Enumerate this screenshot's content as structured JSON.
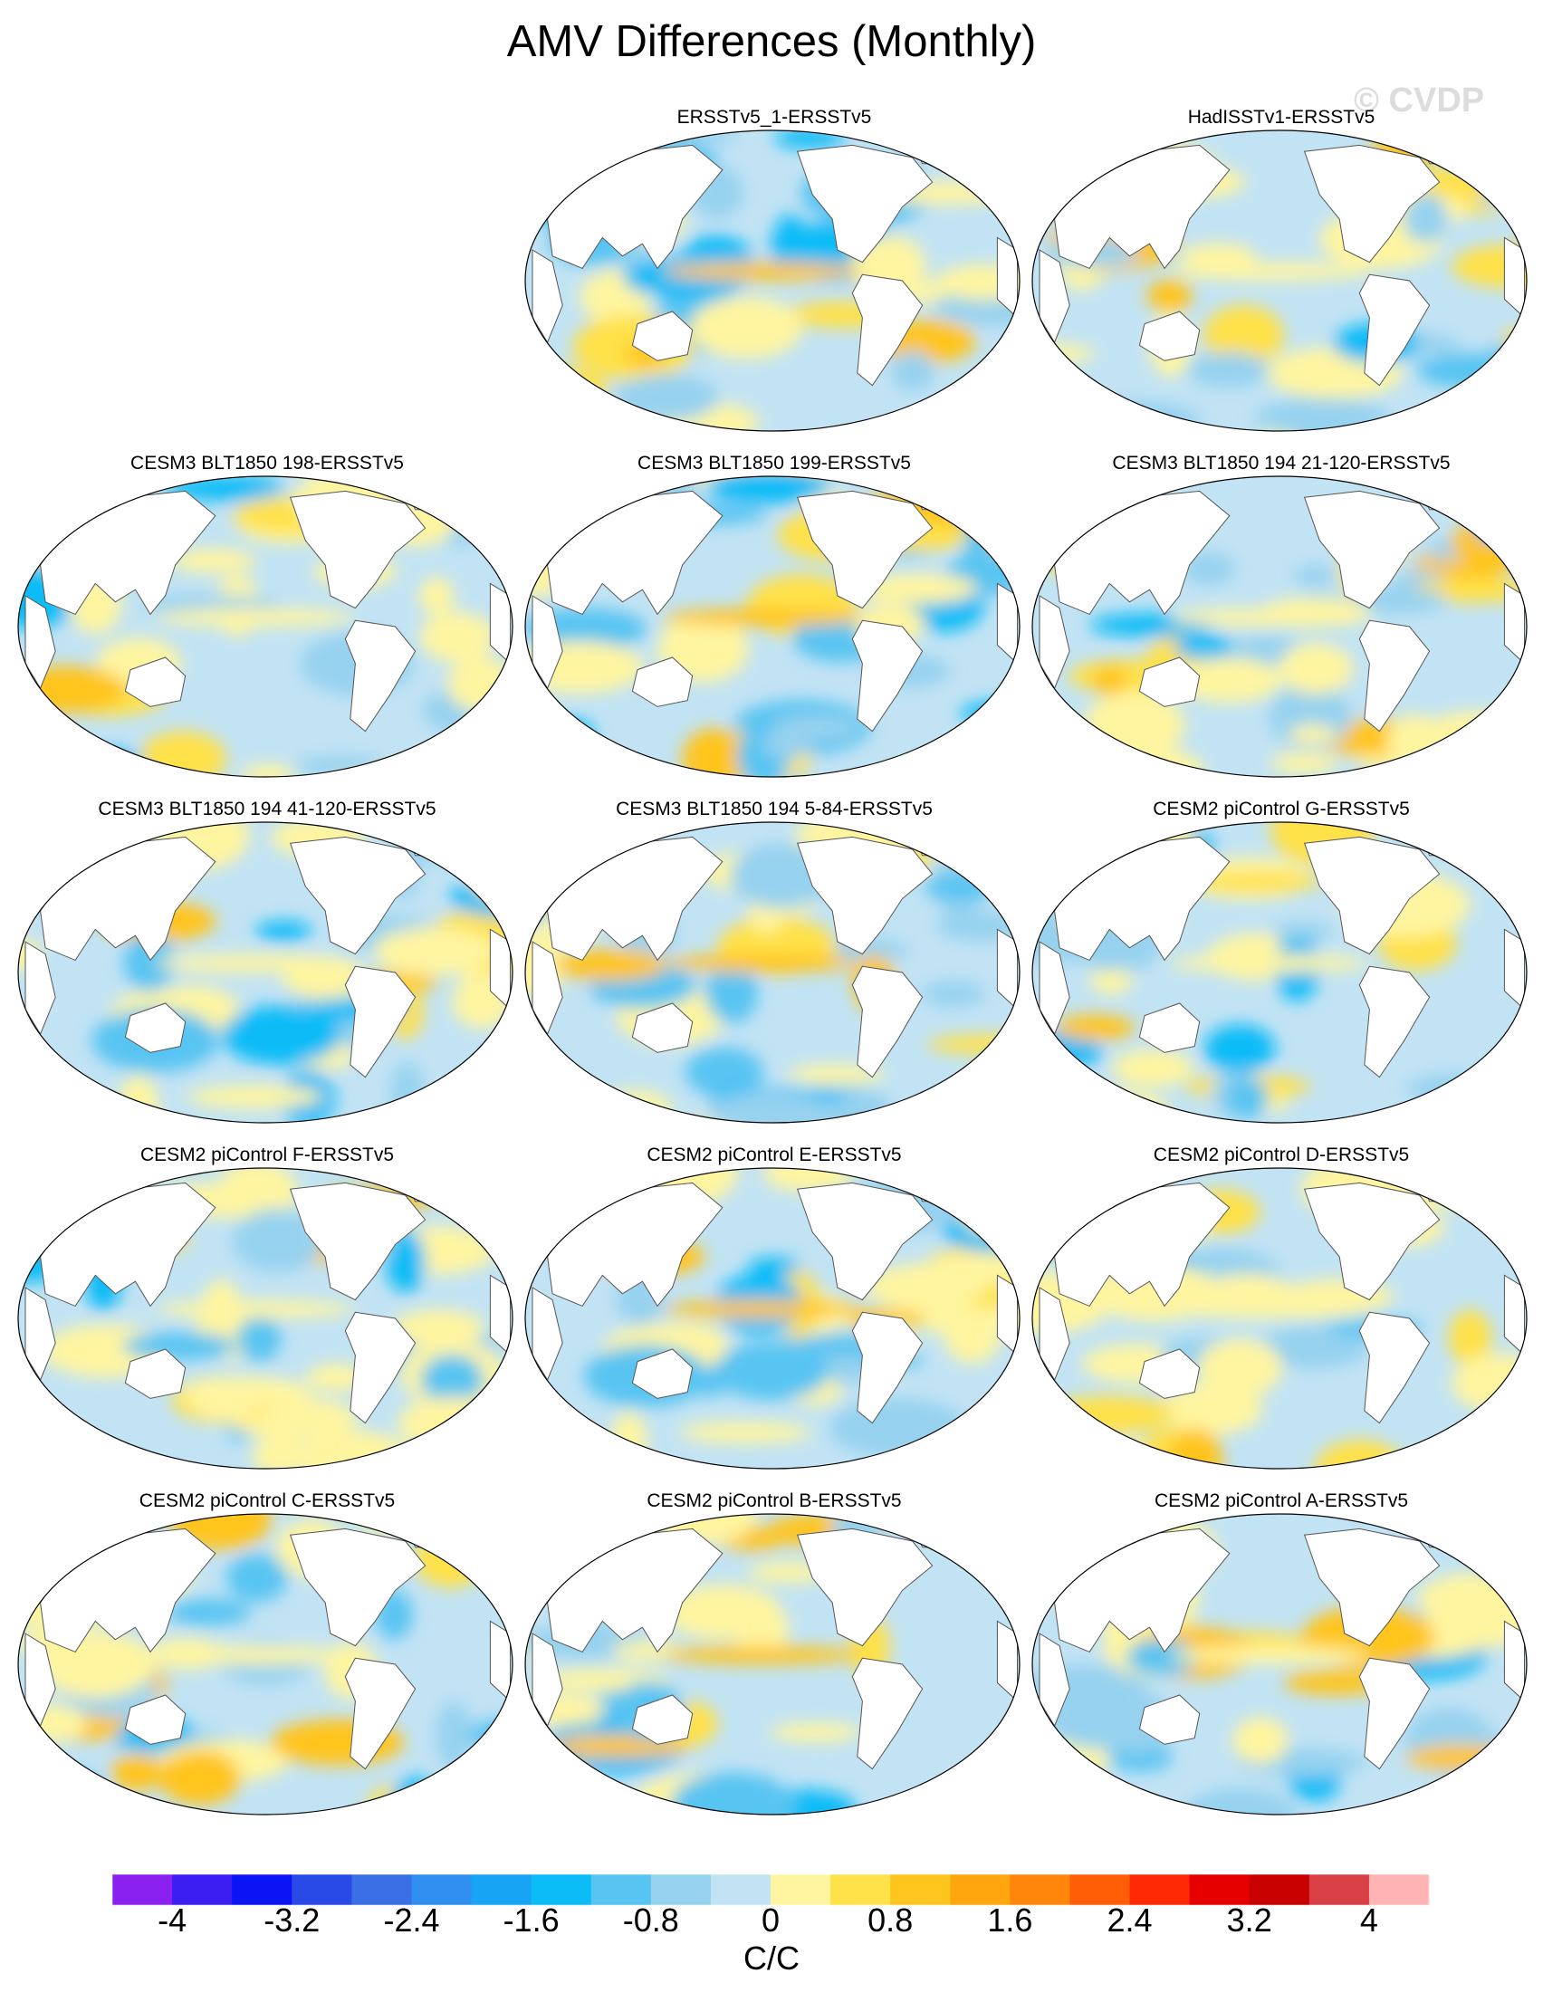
{
  "title": "AMV Differences (Monthly)",
  "watermark": "© CVDP",
  "panels": [
    {
      "title": "ERSSTv5_1-ERSSTv5",
      "row": 0,
      "col": 1
    },
    {
      "title": "HadISSTv1-ERSSTv5",
      "row": 0,
      "col": 2
    },
    {
      "title": "CESM3 BLT1850 198-ERSSTv5",
      "row": 1,
      "col": 0
    },
    {
      "title": "CESM3 BLT1850 199-ERSSTv5",
      "row": 1,
      "col": 1
    },
    {
      "title": "CESM3 BLT1850 194 21-120-ERSSTv5",
      "row": 1,
      "col": 2
    },
    {
      "title": "CESM3 BLT1850 194 41-120-ERSSTv5",
      "row": 2,
      "col": 0
    },
    {
      "title": "CESM3 BLT1850 194 5-84-ERSSTv5",
      "row": 2,
      "col": 1
    },
    {
      "title": "CESM2 piControl G-ERSSTv5",
      "row": 2,
      "col": 2
    },
    {
      "title": "CESM2 piControl F-ERSSTv5",
      "row": 3,
      "col": 0
    },
    {
      "title": "CESM2 piControl E-ERSSTv5",
      "row": 3,
      "col": 1
    },
    {
      "title": "CESM2 piControl D-ERSSTv5",
      "row": 3,
      "col": 2
    },
    {
      "title": "CESM2 piControl C-ERSSTv5",
      "row": 4,
      "col": 0
    },
    {
      "title": "CESM2 piControl B-ERSSTv5",
      "row": 4,
      "col": 1
    },
    {
      "title": "CESM2 piControl A-ERSSTv5",
      "row": 4,
      "col": 2
    }
  ],
  "colorbar": {
    "colors": [
      "#8b21f0",
      "#3d1ef2",
      "#0b14f5",
      "#2a4ae8",
      "#3b6fe6",
      "#2f8ef0",
      "#18a4f5",
      "#0bbcf7",
      "#58c4f2",
      "#96d2ef",
      "#c2e3f4",
      "#fff5a0",
      "#ffe14a",
      "#ffc51f",
      "#ffa60f",
      "#ff860b",
      "#ff5e07",
      "#ff2a05",
      "#e60000",
      "#c80000",
      "#d94045",
      "#ffb3b3"
    ],
    "tick_labels": [
      "-4",
      "-3.2",
      "-2.4",
      "-1.6",
      "-0.8",
      "0",
      "0.8",
      "1.6",
      "2.4",
      "3.2",
      "4"
    ],
    "units": "C/C"
  }
}
